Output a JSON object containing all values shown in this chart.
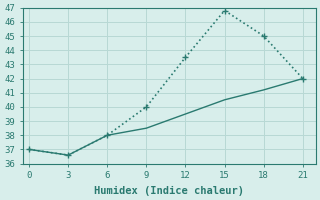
{
  "xlabel": "Humidex (Indice chaleur)",
  "line1_x": [
    0,
    3,
    6,
    9,
    12,
    15,
    18,
    21
  ],
  "line1_y": [
    37.0,
    36.6,
    38.0,
    40.0,
    43.5,
    46.8,
    45.0,
    42.0
  ],
  "line2_x": [
    0,
    3,
    6,
    9,
    12,
    15,
    18,
    21
  ],
  "line2_y": [
    37.0,
    36.6,
    38.0,
    38.5,
    39.5,
    40.5,
    41.2,
    42.0
  ],
  "line_color": "#2a7a70",
  "bg_color": "#d8eeeb",
  "grid_color": "#b8d8d4",
  "xlim": [
    -0.5,
    22
  ],
  "ylim": [
    36,
    47
  ],
  "xticks": [
    0,
    3,
    6,
    9,
    12,
    15,
    18,
    21
  ],
  "yticks": [
    36,
    37,
    38,
    39,
    40,
    41,
    42,
    43,
    44,
    45,
    46,
    47
  ],
  "markersize": 3.5,
  "tick_fontsize": 6.5,
  "label_fontsize": 7.5
}
